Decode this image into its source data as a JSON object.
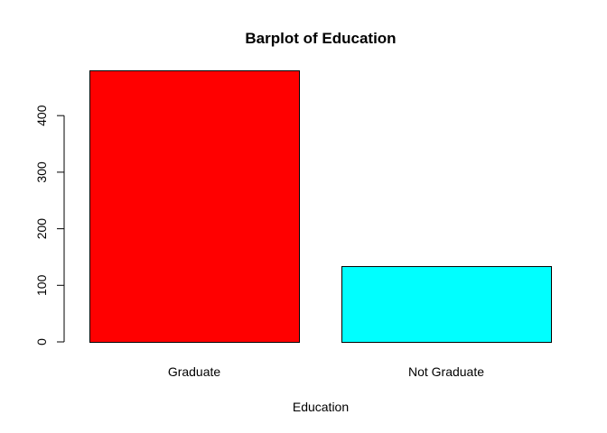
{
  "chart_data": {
    "type": "bar",
    "title": "Barplot of Education",
    "xlabel": "Education",
    "ylabel": "",
    "categories": [
      "Graduate",
      "Not Graduate"
    ],
    "values": [
      480,
      134
    ],
    "colors": [
      "#ff0000",
      "#00ffff"
    ],
    "bar_border_color": "#000000",
    "ylim": [
      0,
      480
    ],
    "yticks": [
      0,
      100,
      200,
      300,
      400
    ],
    "ytick_labels": [
      "0",
      "100",
      "200",
      "300",
      "400"
    ],
    "grid": false,
    "legend": "none"
  }
}
